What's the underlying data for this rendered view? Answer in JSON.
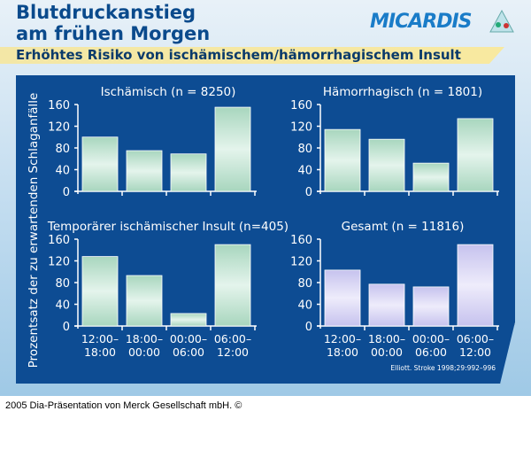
{
  "header": {
    "title_line1": "Blutdruckanstieg",
    "title_line2": "am frühen Morgen",
    "logo": "MICARDIS",
    "subtitle": "Erhöhtes Risiko von ischämischem/hämorrhagischem Insult"
  },
  "footer": "2005 Dia-Präsentation von Merck Gesellschaft mbH. ©",
  "citation": "Elliott. Stroke 1998;29:992–996",
  "colors": {
    "panel": "#0d4c93",
    "green_bar": "#cfeadc",
    "purple_bar": "#dcdaf5",
    "text": "#ffffff"
  },
  "chart_data": [
    {
      "type": "bar",
      "title": "Ischämisch (n = 8250)",
      "ylabel": "Prozentsatz der zu erwartenden Schlaganfälle",
      "categories": [
        "12:00–18:00",
        "18:00–00:00",
        "00:00–06:00",
        "06:00–12:00"
      ],
      "values": [
        100,
        75,
        69,
        155
      ],
      "ylim": [
        0,
        160
      ],
      "yticks": [
        0,
        40,
        80,
        120,
        160
      ],
      "show_xticklabels": false,
      "bar_color": "#cfeadc"
    },
    {
      "type": "bar",
      "title": "Hämorrhagisch (n = 1801)",
      "categories": [
        "12:00–18:00",
        "18:00–00:00",
        "00:00–06:00",
        "06:00–12:00"
      ],
      "values": [
        114,
        96,
        52,
        134
      ],
      "ylim": [
        0,
        160
      ],
      "yticks": [
        0,
        40,
        80,
        120,
        160
      ],
      "show_xticklabels": false,
      "bar_color": "#cfeadc"
    },
    {
      "type": "bar",
      "title": "Temporärer ischämischer Insult (n=405)",
      "categories": [
        "12:00–18:00",
        "18:00–00:00",
        "00:00–06:00",
        "06:00–12:00"
      ],
      "values": [
        128,
        93,
        23,
        150
      ],
      "ylim": [
        0,
        160
      ],
      "yticks": [
        0,
        40,
        80,
        120,
        160
      ],
      "show_xticklabels": true,
      "bar_color": "#cfeadc"
    },
    {
      "type": "bar",
      "title": "Gesamt (n = 11816)",
      "categories": [
        "12:00–18:00",
        "18:00–00:00",
        "00:00–06:00",
        "06:00–12:00"
      ],
      "values": [
        103,
        77,
        72,
        150
      ],
      "ylim": [
        0,
        160
      ],
      "yticks": [
        0,
        40,
        80,
        120,
        160
      ],
      "show_xticklabels": true,
      "bar_color": "#dcdaf5"
    }
  ]
}
